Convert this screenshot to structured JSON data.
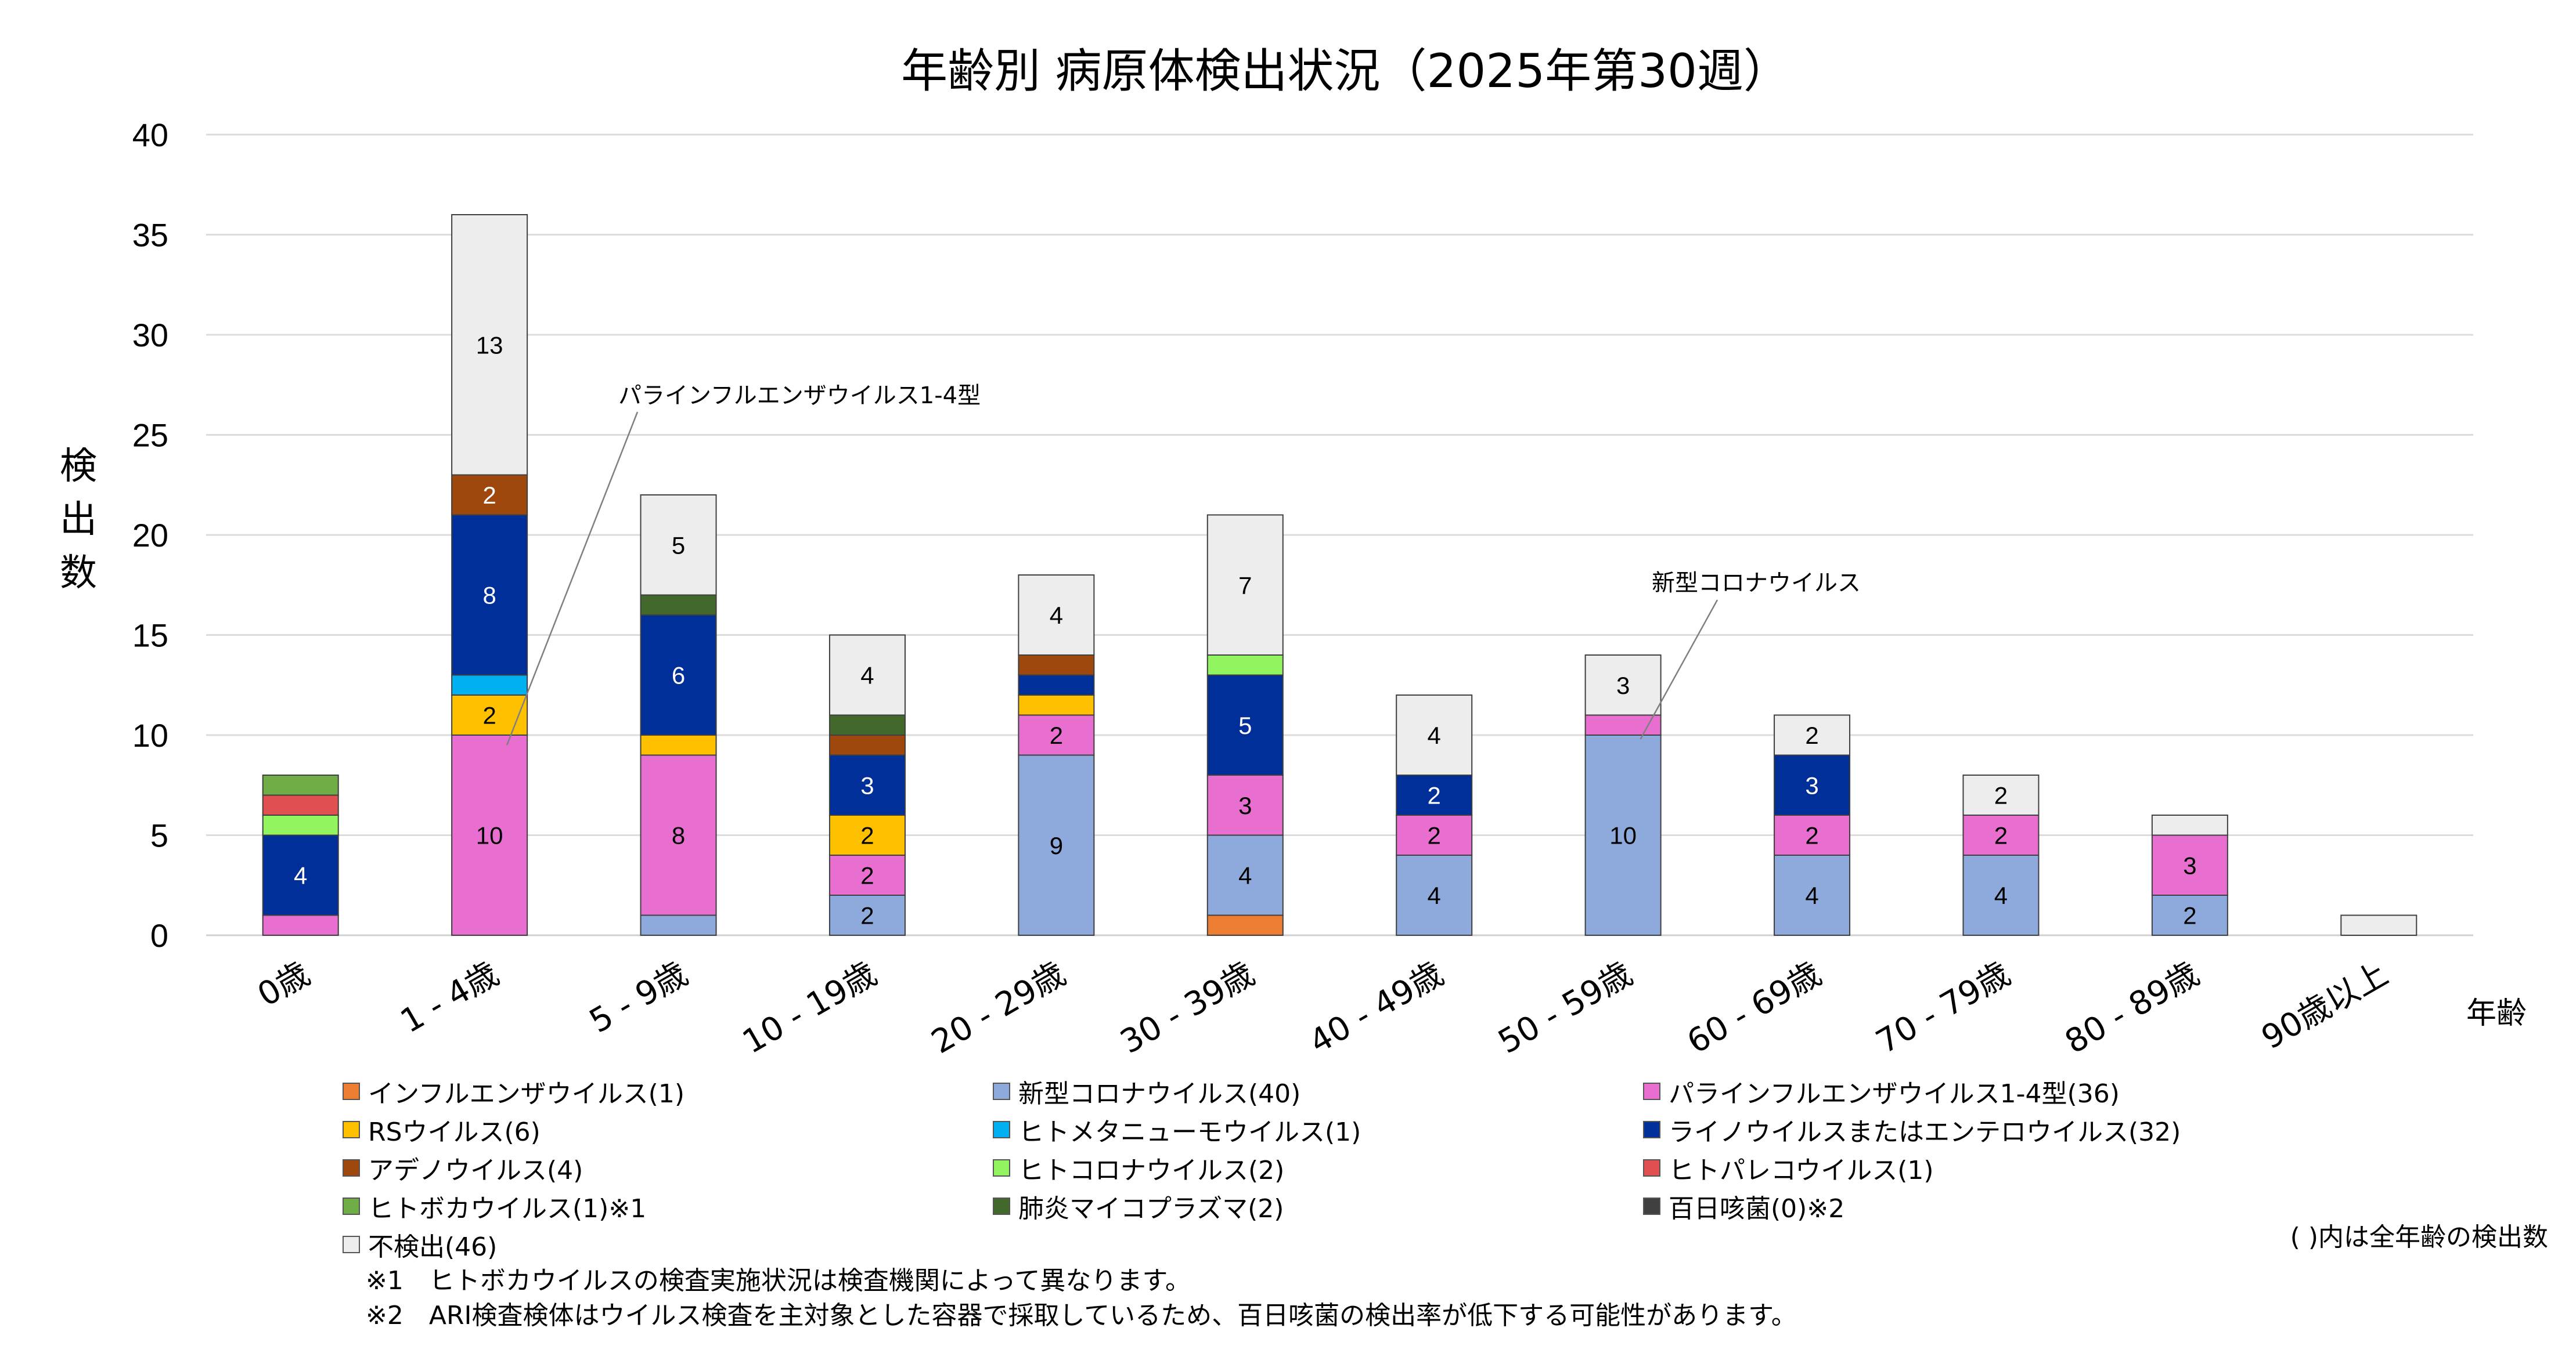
{
  "chart_data": {
    "type": "bar",
    "stacked": true,
    "title": "年齢別 病原体検出状況（2025年第30週）",
    "ylabel": "検出数",
    "xlabel": "年齢",
    "ylim": [
      0,
      40
    ],
    "yticks": [
      0,
      5,
      10,
      15,
      20,
      25,
      30,
      35,
      40
    ],
    "grid": true,
    "legend_position": "bottom",
    "categories": [
      "0歳",
      "1 - 4歳",
      "5 - 9歳",
      "10 - 19歳",
      "20 - 29歳",
      "30 - 39歳",
      "40 - 49歳",
      "50 - 59歳",
      "60 - 69歳",
      "70 - 79歳",
      "80 - 89歳",
      "90歳以上"
    ],
    "series": [
      {
        "name": "インフルエンザウイルス(1)",
        "color": "#ED7D31",
        "values": [
          0,
          0,
          0,
          0,
          0,
          1,
          0,
          0,
          0,
          0,
          0,
          0
        ]
      },
      {
        "name": "新型コロナウイルス(40)",
        "color": "#8EA9DB",
        "values": [
          0,
          0,
          1,
          2,
          9,
          4,
          4,
          10,
          4,
          4,
          2,
          0
        ]
      },
      {
        "name": "パラインフルエンザウイルス1-4型(36)",
        "color": "#E86ED0",
        "values": [
          1,
          10,
          8,
          2,
          2,
          3,
          2,
          1,
          2,
          2,
          3,
          0
        ]
      },
      {
        "name": "RSウイルス(6)",
        "color": "#FFC000",
        "values": [
          0,
          2,
          1,
          2,
          1,
          0,
          0,
          0,
          0,
          0,
          0,
          0
        ]
      },
      {
        "name": "ヒトメタニューモウイルス(1)",
        "color": "#00B0F0",
        "values": [
          0,
          1,
          0,
          0,
          0,
          0,
          0,
          0,
          0,
          0,
          0,
          0
        ]
      },
      {
        "name": "ライノウイルスまたはエンテロウイルス(32)",
        "color": "#002F9A",
        "values": [
          4,
          8,
          6,
          3,
          1,
          5,
          2,
          0,
          3,
          0,
          0,
          0
        ]
      },
      {
        "name": "アデノウイルス(4)",
        "color": "#9E480E",
        "values": [
          0,
          2,
          0,
          1,
          1,
          0,
          0,
          0,
          0,
          0,
          0,
          0
        ]
      },
      {
        "name": "ヒトコロナウイルス(2)",
        "color": "#92F560",
        "values": [
          1,
          0,
          0,
          0,
          0,
          1,
          0,
          0,
          0,
          0,
          0,
          0
        ]
      },
      {
        "name": "ヒトパレコウイルス(1)",
        "color": "#E05050",
        "values": [
          1,
          0,
          0,
          0,
          0,
          0,
          0,
          0,
          0,
          0,
          0,
          0
        ]
      },
      {
        "name": "ヒトボカウイルス(1)※1",
        "color": "#70AD47",
        "values": [
          1,
          0,
          0,
          0,
          0,
          0,
          0,
          0,
          0,
          0,
          0,
          0
        ]
      },
      {
        "name": "肺炎マイコプラズマ(2)",
        "color": "#43682B",
        "values": [
          0,
          0,
          1,
          1,
          0,
          0,
          0,
          0,
          0,
          0,
          0,
          0
        ]
      },
      {
        "name": "百日咳菌(0)※2",
        "color": "#404040",
        "values": [
          0,
          0,
          0,
          0,
          0,
          0,
          0,
          0,
          0,
          0,
          0,
          0
        ]
      },
      {
        "name": "不検出(46)",
        "color": "#EDEDED",
        "values": [
          0,
          13,
          5,
          4,
          4,
          7,
          4,
          3,
          2,
          2,
          1,
          1
        ]
      }
    ],
    "data_labels": [
      {
        "category": 0,
        "series": 5,
        "text": "4"
      },
      {
        "category": 1,
        "series": 2,
        "text": "10"
      },
      {
        "category": 1,
        "series": 3,
        "text": "2"
      },
      {
        "category": 1,
        "series": 5,
        "text": "8"
      },
      {
        "category": 1,
        "series": 6,
        "text": "2"
      },
      {
        "category": 1,
        "series": 12,
        "text": "13"
      },
      {
        "category": 2,
        "series": 2,
        "text": "8"
      },
      {
        "category": 2,
        "series": 5,
        "text": "6"
      },
      {
        "category": 2,
        "series": 12,
        "text": "5"
      },
      {
        "category": 3,
        "series": 1,
        "text": "2"
      },
      {
        "category": 3,
        "series": 2,
        "text": "2"
      },
      {
        "category": 3,
        "series": 3,
        "text": "2"
      },
      {
        "category": 3,
        "series": 5,
        "text": "3"
      },
      {
        "category": 3,
        "series": 12,
        "text": "4"
      },
      {
        "category": 4,
        "series": 1,
        "text": "9"
      },
      {
        "category": 4,
        "series": 2,
        "text": "2"
      },
      {
        "category": 4,
        "series": 12,
        "text": "4"
      },
      {
        "category": 5,
        "series": 1,
        "text": "4"
      },
      {
        "category": 5,
        "series": 2,
        "text": "3"
      },
      {
        "category": 5,
        "series": 5,
        "text": "5"
      },
      {
        "category": 5,
        "series": 12,
        "text": "7"
      },
      {
        "category": 6,
        "series": 1,
        "text": "4"
      },
      {
        "category": 6,
        "series": 2,
        "text": "2"
      },
      {
        "category": 6,
        "series": 5,
        "text": "2"
      },
      {
        "category": 6,
        "series": 12,
        "text": "4"
      },
      {
        "category": 7,
        "series": 1,
        "text": "10"
      },
      {
        "category": 7,
        "series": 12,
        "text": "3"
      },
      {
        "category": 8,
        "series": 1,
        "text": "4"
      },
      {
        "category": 8,
        "series": 2,
        "text": "2"
      },
      {
        "category": 8,
        "series": 5,
        "text": "3"
      },
      {
        "category": 8,
        "series": 12,
        "text": "2"
      },
      {
        "category": 9,
        "series": 1,
        "text": "4"
      },
      {
        "category": 9,
        "series": 2,
        "text": "2"
      },
      {
        "category": 9,
        "series": 12,
        "text": "2"
      },
      {
        "category": 10,
        "series": 1,
        "text": "2"
      },
      {
        "category": 10,
        "series": 2,
        "text": "3"
      }
    ],
    "annotations": [
      {
        "text": "パラインフルエンザウイルス1-4型",
        "category": 1,
        "series": 2
      },
      {
        "text": "新型コロナウイルス",
        "category": 7,
        "series": 1
      }
    ]
  },
  "legend_note": "( )内は全年齢の検出数",
  "footnotes": [
    "※1　ヒトボカウイルスの検査実施状況は検査機関によって異なります。",
    "※2　ARI検査検体はウイルス検査を主対象とした容器で採取しているため、百日咳菌の検出率が低下する可能性があります。"
  ]
}
